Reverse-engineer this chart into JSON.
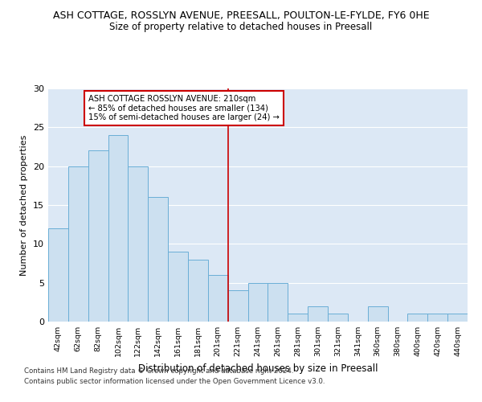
{
  "title": "ASH COTTAGE, ROSSLYN AVENUE, PREESALL, POULTON-LE-FYLDE, FY6 0HE",
  "subtitle": "Size of property relative to detached houses in Preesall",
  "xlabel": "Distribution of detached houses by size in Preesall",
  "ylabel": "Number of detached properties",
  "categories": [
    "42sqm",
    "62sqm",
    "82sqm",
    "102sqm",
    "122sqm",
    "142sqm",
    "161sqm",
    "181sqm",
    "201sqm",
    "221sqm",
    "241sqm",
    "261sqm",
    "281sqm",
    "301sqm",
    "321sqm",
    "341sqm",
    "360sqm",
    "380sqm",
    "400sqm",
    "420sqm",
    "440sqm"
  ],
  "values": [
    12,
    20,
    22,
    24,
    20,
    16,
    9,
    8,
    6,
    4,
    5,
    5,
    1,
    2,
    1,
    0,
    2,
    0,
    1,
    1,
    1
  ],
  "bar_color": "#cce0f0",
  "bar_edge_color": "#6aaed6",
  "property_line_x": 8.5,
  "annotation_line1": "ASH COTTAGE ROSSLYN AVENUE: 210sqm",
  "annotation_line2": "← 85% of detached houses are smaller (134)",
  "annotation_line3": "15% of semi-detached houses are larger (24) →",
  "annotation_box_color": "#ffffff",
  "annotation_border_color": "#cc0000",
  "ylim": [
    0,
    30
  ],
  "yticks": [
    0,
    5,
    10,
    15,
    20,
    25,
    30
  ],
  "background_color": "#dce8f5",
  "footer_line1": "Contains HM Land Registry data © Crown copyright and database right 2024.",
  "footer_line2": "Contains public sector information licensed under the Open Government Licence v3.0.",
  "grid_color": "#ffffff",
  "title_fontsize": 9,
  "subtitle_fontsize": 8.5,
  "xlabel_fontsize": 8.5,
  "ylabel_fontsize": 8
}
